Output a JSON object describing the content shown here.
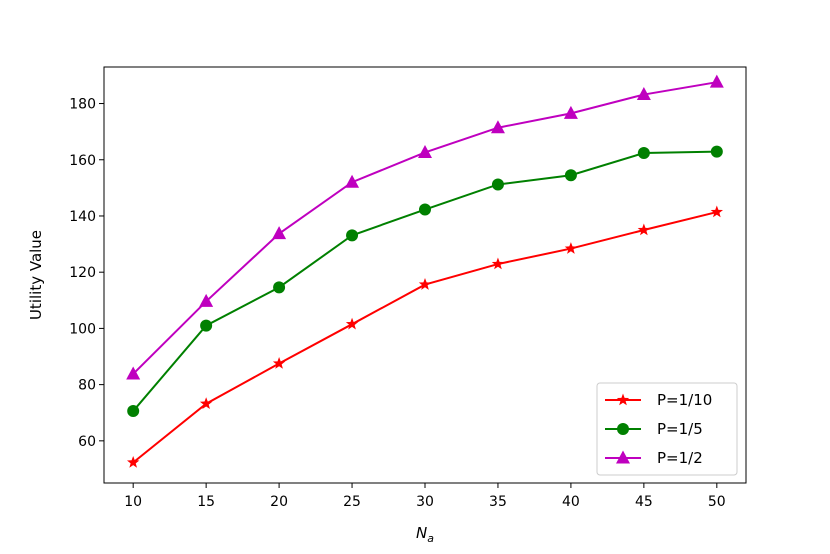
{
  "chart_data": {
    "type": "line",
    "title": "",
    "xlabel_main": "N",
    "xlabel_sub": "a",
    "ylabel": "Utility Value",
    "x": [
      10,
      15,
      20,
      25,
      30,
      35,
      40,
      45,
      50
    ],
    "xlim": [
      8,
      52
    ],
    "ylim": [
      45,
      193
    ],
    "xticks": [
      10,
      15,
      20,
      25,
      30,
      35,
      40,
      45,
      50
    ],
    "yticks": [
      60,
      80,
      100,
      120,
      140,
      160,
      180
    ],
    "grid": false,
    "legend_position": "lower-right",
    "series": [
      {
        "name": "P=1/10",
        "color": "#ff0000",
        "marker": "star",
        "values": [
          52.3,
          73.2,
          87.5,
          101.5,
          115.6,
          122.9,
          128.4,
          135.0,
          141.4
        ]
      },
      {
        "name": "P=1/5",
        "color": "#008000",
        "marker": "circle",
        "values": [
          70.6,
          101.0,
          114.6,
          133.1,
          142.3,
          151.2,
          154.5,
          162.4,
          162.9
        ]
      },
      {
        "name": "P=1/2",
        "color": "#bf00bf",
        "marker": "triangle",
        "values": [
          83.8,
          109.6,
          133.7,
          152.0,
          162.6,
          171.4,
          176.5,
          183.2,
          187.6
        ]
      }
    ]
  }
}
